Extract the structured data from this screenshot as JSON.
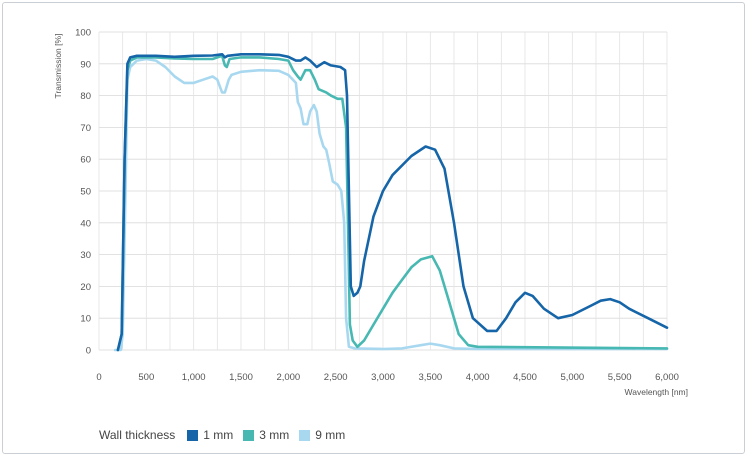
{
  "chart_data": {
    "type": "line",
    "xlabel": "Wavelength [nm]",
    "ylabel": "Transmission [%]",
    "xlim": [
      0,
      6000
    ],
    "ylim": [
      0,
      100
    ],
    "x_ticks": [
      0,
      500,
      1000,
      1500,
      2000,
      2500,
      3000,
      3500,
      4000,
      4500,
      5000,
      5500,
      6000
    ],
    "x_tick_labels": [
      "0",
      "500",
      "1,000",
      "1,500",
      "2,000",
      "2,500",
      "3,000",
      "3,500",
      "4,000",
      "4,500",
      "5,000",
      "5,500",
      "6,000"
    ],
    "y_ticks": [
      0,
      10,
      20,
      30,
      40,
      50,
      60,
      70,
      80,
      90,
      100
    ],
    "grid": true,
    "legend": {
      "title": "Wall thickness",
      "position": "bottom-left"
    },
    "series": [
      {
        "name": "1 mm",
        "color": "#1565a8",
        "points": [
          [
            200,
            0
          ],
          [
            240,
            5
          ],
          [
            270,
            60
          ],
          [
            300,
            90
          ],
          [
            330,
            92
          ],
          [
            400,
            92.5
          ],
          [
            600,
            92.5
          ],
          [
            800,
            92.2
          ],
          [
            1000,
            92.5
          ],
          [
            1200,
            92.6
          ],
          [
            1300,
            93
          ],
          [
            1330,
            92
          ],
          [
            1360,
            92.5
          ],
          [
            1500,
            93
          ],
          [
            1700,
            93
          ],
          [
            1900,
            92.8
          ],
          [
            2000,
            92.2
          ],
          [
            2080,
            91
          ],
          [
            2130,
            91
          ],
          [
            2180,
            92
          ],
          [
            2230,
            91
          ],
          [
            2300,
            89
          ],
          [
            2380,
            90.5
          ],
          [
            2450,
            89.5
          ],
          [
            2550,
            89
          ],
          [
            2600,
            88
          ],
          [
            2620,
            80
          ],
          [
            2640,
            50
          ],
          [
            2660,
            20
          ],
          [
            2690,
            17
          ],
          [
            2730,
            18
          ],
          [
            2760,
            20
          ],
          [
            2800,
            28
          ],
          [
            2900,
            42
          ],
          [
            3000,
            50
          ],
          [
            3100,
            55
          ],
          [
            3300,
            61
          ],
          [
            3450,
            64
          ],
          [
            3550,
            63
          ],
          [
            3650,
            57
          ],
          [
            3750,
            40
          ],
          [
            3850,
            20
          ],
          [
            3950,
            10
          ],
          [
            4100,
            6
          ],
          [
            4200,
            6
          ],
          [
            4300,
            10
          ],
          [
            4400,
            15
          ],
          [
            4500,
            18
          ],
          [
            4580,
            17
          ],
          [
            4700,
            13
          ],
          [
            4850,
            10
          ],
          [
            5000,
            11
          ],
          [
            5200,
            14
          ],
          [
            5300,
            15.5
          ],
          [
            5400,
            16
          ],
          [
            5500,
            15
          ],
          [
            5600,
            13
          ],
          [
            5800,
            10
          ],
          [
            6000,
            7
          ]
        ]
      },
      {
        "name": "3 mm",
        "color": "#48b8b2",
        "points": [
          [
            200,
            0
          ],
          [
            240,
            5
          ],
          [
            270,
            60
          ],
          [
            300,
            88
          ],
          [
            330,
            91
          ],
          [
            400,
            92
          ],
          [
            600,
            92
          ],
          [
            800,
            91.7
          ],
          [
            1000,
            91.5
          ],
          [
            1200,
            91.5
          ],
          [
            1300,
            92.5
          ],
          [
            1330,
            89.5
          ],
          [
            1350,
            89
          ],
          [
            1380,
            91.5
          ],
          [
            1500,
            92
          ],
          [
            1700,
            92
          ],
          [
            1900,
            91.5
          ],
          [
            2000,
            91
          ],
          [
            2050,
            88
          ],
          [
            2100,
            86
          ],
          [
            2130,
            85
          ],
          [
            2180,
            88
          ],
          [
            2230,
            88
          ],
          [
            2280,
            85
          ],
          [
            2320,
            82
          ],
          [
            2400,
            81
          ],
          [
            2450,
            80
          ],
          [
            2520,
            79
          ],
          [
            2570,
            79
          ],
          [
            2610,
            70
          ],
          [
            2630,
            40
          ],
          [
            2650,
            8
          ],
          [
            2680,
            3
          ],
          [
            2730,
            1
          ],
          [
            2800,
            3
          ],
          [
            2900,
            8
          ],
          [
            3000,
            13
          ],
          [
            3100,
            18
          ],
          [
            3200,
            22
          ],
          [
            3300,
            26
          ],
          [
            3400,
            28.5
          ],
          [
            3520,
            29.5
          ],
          [
            3600,
            25
          ],
          [
            3700,
            15
          ],
          [
            3800,
            5
          ],
          [
            3900,
            1.5
          ],
          [
            4000,
            1
          ],
          [
            6000,
            0.5
          ]
        ]
      },
      {
        "name": "9 mm",
        "color": "#a8d8f0",
        "points": [
          [
            170,
            0
          ],
          [
            230,
            0
          ],
          [
            250,
            5
          ],
          [
            280,
            50
          ],
          [
            300,
            85
          ],
          [
            330,
            89
          ],
          [
            400,
            91
          ],
          [
            500,
            91.5
          ],
          [
            600,
            91
          ],
          [
            700,
            89
          ],
          [
            800,
            86
          ],
          [
            900,
            84
          ],
          [
            1000,
            84
          ],
          [
            1100,
            85
          ],
          [
            1200,
            86
          ],
          [
            1250,
            85
          ],
          [
            1300,
            81
          ],
          [
            1330,
            81
          ],
          [
            1370,
            85
          ],
          [
            1400,
            86.5
          ],
          [
            1500,
            87.5
          ],
          [
            1700,
            88
          ],
          [
            1900,
            87.8
          ],
          [
            2000,
            86.5
          ],
          [
            2080,
            84
          ],
          [
            2100,
            78
          ],
          [
            2130,
            76
          ],
          [
            2160,
            71
          ],
          [
            2200,
            71
          ],
          [
            2230,
            75
          ],
          [
            2270,
            77
          ],
          [
            2300,
            75
          ],
          [
            2330,
            68
          ],
          [
            2370,
            64
          ],
          [
            2400,
            63
          ],
          [
            2430,
            59
          ],
          [
            2470,
            53
          ],
          [
            2520,
            52
          ],
          [
            2560,
            50
          ],
          [
            2590,
            40
          ],
          [
            2610,
            10
          ],
          [
            2640,
            1
          ],
          [
            2700,
            0.5
          ],
          [
            3000,
            0.3
          ],
          [
            3200,
            0.5
          ],
          [
            3400,
            1.5
          ],
          [
            3500,
            2
          ],
          [
            3600,
            1.5
          ],
          [
            3750,
            0.5
          ],
          [
            4000,
            0.3
          ],
          [
            6000,
            0.3
          ]
        ]
      }
    ]
  }
}
